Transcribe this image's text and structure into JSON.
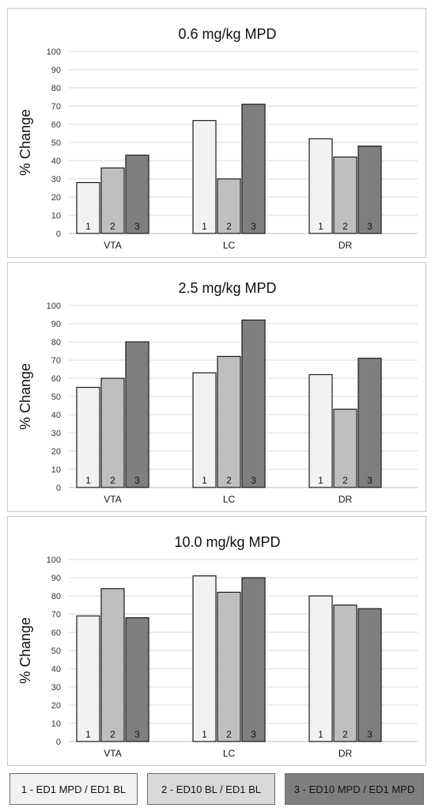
{
  "chart_data": [
    {
      "type": "bar",
      "title": "0.6 mg/kg MPD",
      "ylabel": "% Change",
      "ylim": [
        0,
        100
      ],
      "yticks": [
        0,
        10,
        20,
        30,
        40,
        50,
        60,
        70,
        80,
        90,
        100
      ],
      "grid": true,
      "categories": [
        "VTA",
        "LC",
        "DR"
      ],
      "bar_labels": [
        "1",
        "2",
        "3"
      ],
      "series": [
        {
          "values": [
            28,
            62,
            52
          ],
          "color": "#f2f2f2"
        },
        {
          "values": [
            36,
            30,
            42
          ],
          "color": "#bfbfbf"
        },
        {
          "values": [
            43,
            71,
            48
          ],
          "color": "#7f7f7f"
        }
      ]
    },
    {
      "type": "bar",
      "title": "2.5 mg/kg MPD",
      "ylabel": "% Change",
      "ylim": [
        0,
        100
      ],
      "yticks": [
        0,
        10,
        20,
        30,
        40,
        50,
        60,
        70,
        80,
        90,
        100
      ],
      "grid": true,
      "categories": [
        "VTA",
        "LC",
        "DR"
      ],
      "bar_labels": [
        "1",
        "2",
        "3"
      ],
      "series": [
        {
          "values": [
            55,
            63,
            62
          ],
          "color": "#f2f2f2"
        },
        {
          "values": [
            60,
            72,
            43
          ],
          "color": "#bfbfbf"
        },
        {
          "values": [
            80,
            92,
            71
          ],
          "color": "#7f7f7f"
        }
      ]
    },
    {
      "type": "bar",
      "title": "10.0 mg/kg MPD",
      "ylabel": "% Change",
      "ylim": [
        0,
        100
      ],
      "yticks": [
        0,
        10,
        20,
        30,
        40,
        50,
        60,
        70,
        80,
        90,
        100
      ],
      "grid": true,
      "categories": [
        "VTA",
        "LC",
        "DR"
      ],
      "bar_labels": [
        "1",
        "2",
        "3"
      ],
      "series": [
        {
          "values": [
            69,
            91,
            80
          ],
          "color": "#f2f2f2"
        },
        {
          "values": [
            84,
            82,
            75
          ],
          "color": "#bfbfbf"
        },
        {
          "values": [
            68,
            90,
            73
          ],
          "color": "#7f7f7f"
        }
      ]
    }
  ],
  "legend": [
    {
      "label": "1 - ED1 MPD / ED1 BL",
      "color": "#f2f2f2"
    },
    {
      "label": "2 - ED10 BL / ED1 BL",
      "color": "#d9d9d9"
    },
    {
      "label": "3 - ED10 MPD / ED1 MPD",
      "color": "#7f7f7f"
    }
  ],
  "legend_placement": "bottom"
}
